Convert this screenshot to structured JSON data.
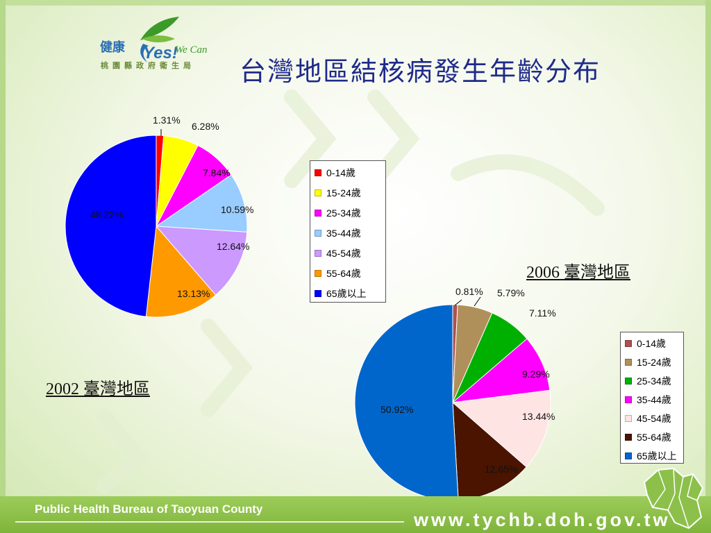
{
  "title": "台灣地區結核病發生年齡分布",
  "logo": {
    "text_main": "健康",
    "text_yes": "Yes!",
    "text_wecan": "We Can",
    "subtitle": "桃園縣政府衛生局",
    "colors": {
      "green": "#3c9a2a",
      "blue": "#2b6fb3"
    }
  },
  "footer": {
    "left_text": "Public Health Bureau of Taoyuan County",
    "right_text": "www.tychb.doh.gov.tw",
    "band_color": "#8cc04a"
  },
  "chart_data": [
    {
      "type": "pie",
      "caption": "2002 臺灣地區",
      "labels": [
        "0-14歲",
        "15-24歲",
        "25-34歲",
        "35-44歲",
        "45-54歲",
        "55-64歲",
        "65歲以上"
      ],
      "values": [
        1.31,
        6.28,
        7.84,
        10.59,
        12.64,
        13.13,
        48.22
      ],
      "data_labels": [
        "1.31%",
        "6.28%",
        "7.84%",
        "10.59%",
        "12.64%",
        "13.13%",
        "48.22%"
      ],
      "colors": [
        "#ff0000",
        "#ffff00",
        "#ff00ff",
        "#99ccff",
        "#cc99ff",
        "#ff9900",
        "#0000ff"
      ],
      "start_angle_deg": 0,
      "direction": "clockwise",
      "legend_placement": "right"
    },
    {
      "type": "pie",
      "caption": "2006 臺灣地區",
      "labels": [
        "0-14歲",
        "15-24歲",
        "25-34歲",
        "35-44歲",
        "45-54歲",
        "55-64歲",
        "65歲以上"
      ],
      "values": [
        0.81,
        5.79,
        7.11,
        9.29,
        13.44,
        12.65,
        50.92
      ],
      "data_labels": [
        "0.81%",
        "5.79%",
        "7.11%",
        "9.29%",
        "13.44%",
        "12.65%",
        "50.92%"
      ],
      "colors": [
        "#b05050",
        "#b0905a",
        "#00b000",
        "#ff00ff",
        "#ffe4e4",
        "#4a1400",
        "#0066cc"
      ],
      "start_angle_deg": 0,
      "direction": "clockwise",
      "legend_placement": "right"
    }
  ]
}
